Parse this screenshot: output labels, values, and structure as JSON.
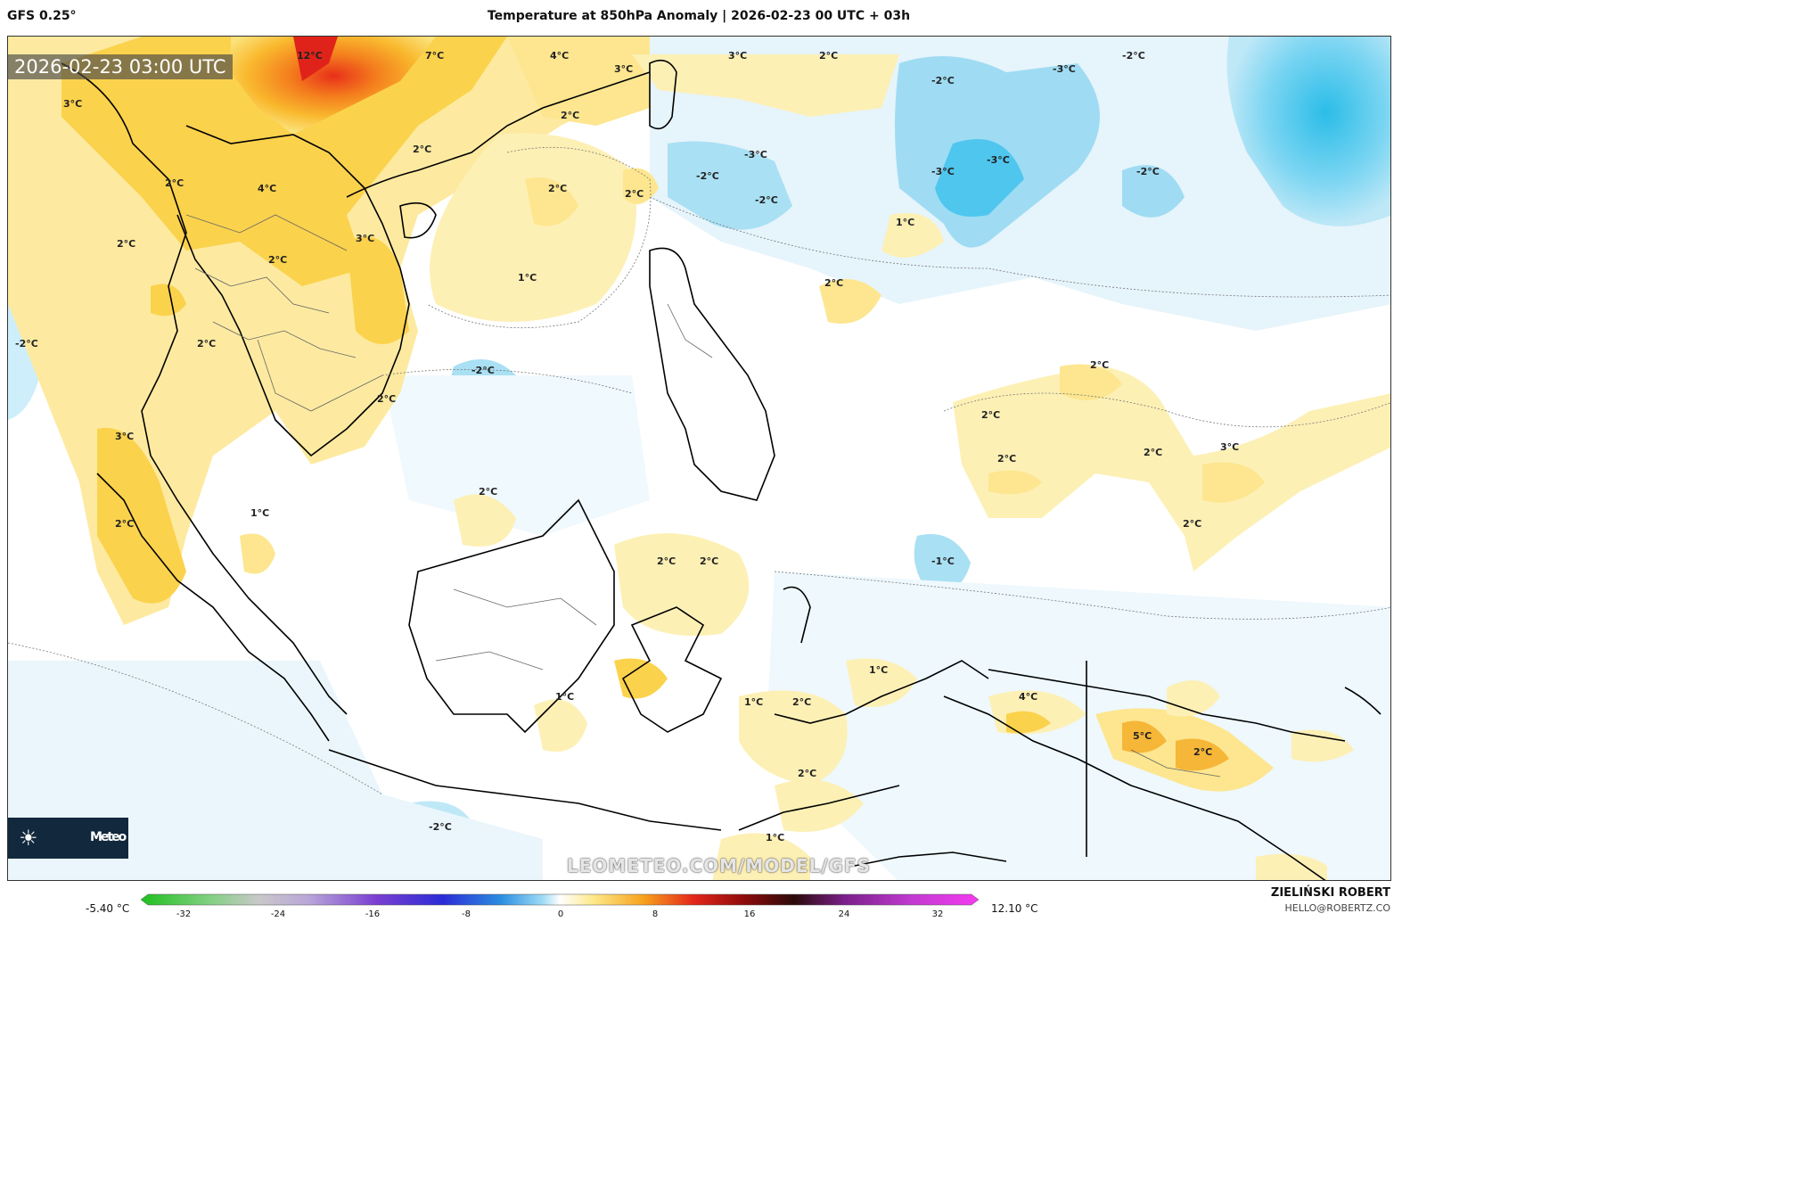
{
  "header": {
    "model": "GFS 0.25°",
    "title": "Temperature at 850hPa Anomaly | 2026-02-23 00 UTC + 03h"
  },
  "map": {
    "timestamp": "2026-02-23 03:00 UTC",
    "watermark": "LEOMETEO.COM/MODEL/GFS",
    "logo_text": "Meteo",
    "contour_labels": [
      "12°C",
      "7°C",
      "4°C",
      "3°C",
      "3°C",
      "2°C",
      "-2°C",
      "-3°C",
      "-2°C",
      "3°C",
      "2°C",
      "2°C",
      "2°C",
      "-3°C",
      "-2°C",
      "-2°C",
      "-3°C",
      "-3°C",
      "-2°C",
      "2°C",
      "4°C",
      "1°C",
      "3°C",
      "2°C",
      "2°C",
      "2°C",
      "2°C",
      "1°C",
      "-2°C",
      "2°C",
      "-2°C",
      "2°C",
      "2°C",
      "3°C",
      "2°C",
      "2°C",
      "2°C",
      "3°C",
      "2°C",
      "1°C",
      "2°C",
      "2°C",
      "2°C",
      "-1°C",
      "2°C",
      "1°C",
      "1°C",
      "2°C",
      "4°C",
      "5°C",
      "2°C",
      "2°C",
      "-2°C",
      "1°C",
      "1°C"
    ]
  },
  "colorbar": {
    "min_label": "-5.40 °C",
    "max_label": "12.10 °C",
    "ticks": [
      "-32",
      "-24",
      "-16",
      "-8",
      "0",
      "8",
      "16",
      "24",
      "32"
    ]
  },
  "footer": {
    "author": "ZIELIŃSKI ROBERT",
    "email": "HELLO@ROBERTZ.CO"
  }
}
